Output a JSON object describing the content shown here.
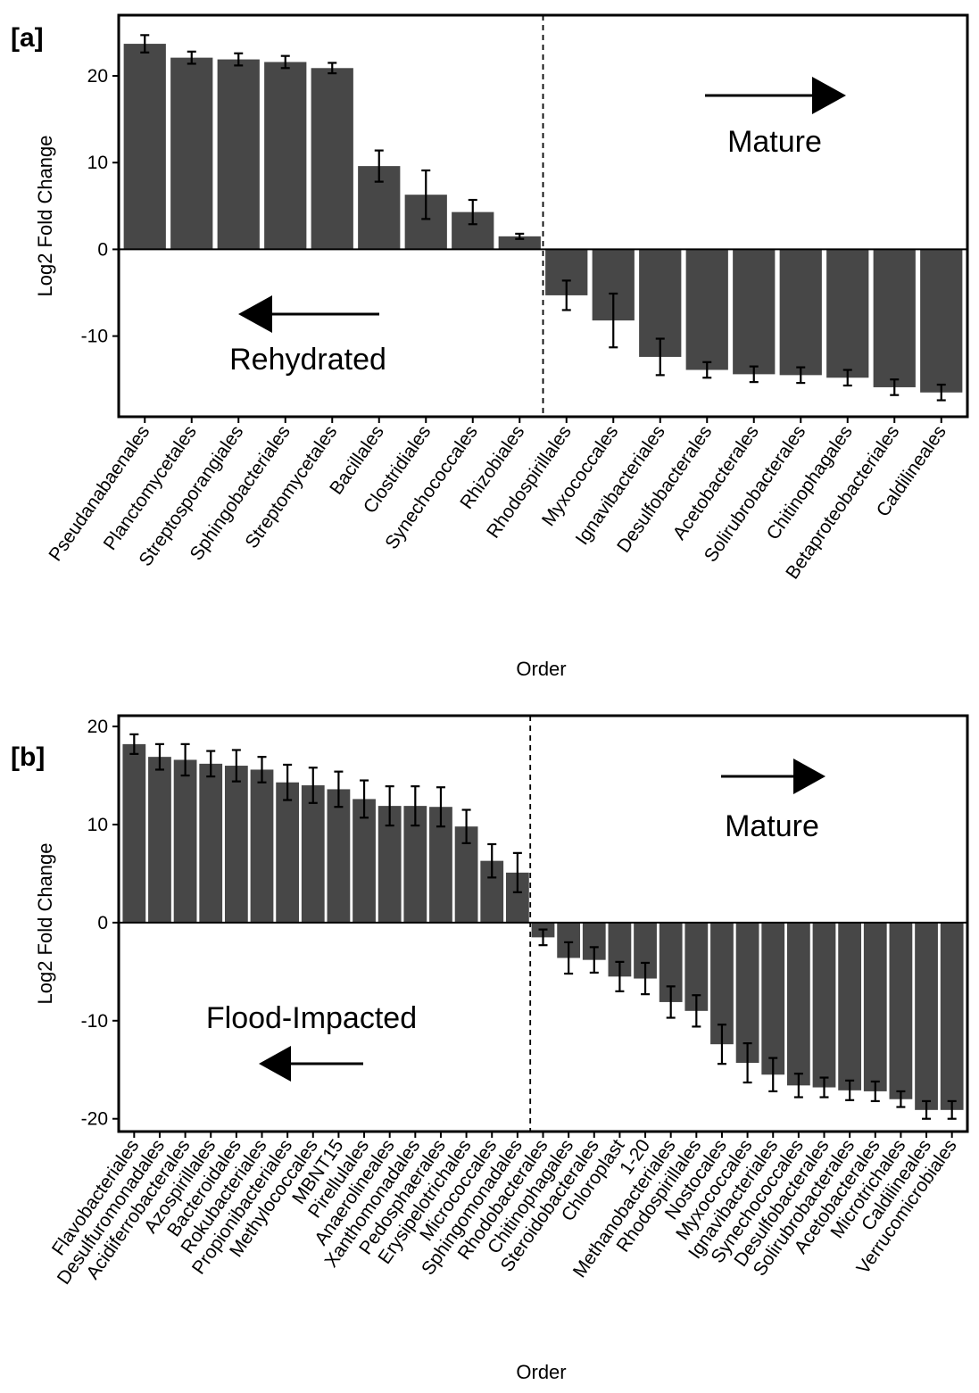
{
  "chart_data": [
    {
      "type": "bar",
      "panel_label": "[a]",
      "xlabel": "Order",
      "ylabel": "Log2 Fold Change",
      "ylim": [
        -19.3,
        27
      ],
      "yticks": [
        -10,
        0,
        10,
        20
      ],
      "ytick_labels": [
        "-10",
        "0",
        "10",
        "20"
      ],
      "categories": [
        "Pseudanabaenales",
        "Planctomycetales",
        "Streptosporangiales",
        "Sphingobacteriales",
        "Streptomycetales",
        "Bacillales",
        "Clostridiales",
        "Synechococcales",
        "Rhizobiales",
        "Rhodospirillales",
        "Myxococcales",
        "Ignavibacteriales",
        "Desulfobacterales",
        "Acetobacterales",
        "Solirubrobacterales",
        "Chitinophagales",
        "Betaproteobacteriales",
        "Caldilineales"
      ],
      "values": [
        23.7,
        22.1,
        21.9,
        21.6,
        20.9,
        9.6,
        6.3,
        4.3,
        1.5,
        -5.3,
        -8.2,
        -12.4,
        -13.9,
        -14.4,
        -14.5,
        -14.8,
        -15.9,
        -16.5
      ],
      "errors": [
        1.0,
        0.7,
        0.7,
        0.7,
        0.6,
        1.8,
        2.8,
        1.4,
        0.3,
        1.7,
        3.1,
        2.1,
        0.9,
        0.9,
        0.9,
        0.9,
        0.9,
        0.9
      ],
      "annotations": {
        "positive_label": "Rehydrated",
        "negative_label": "Mature"
      },
      "bar_color": "#474747"
    },
    {
      "type": "bar",
      "panel_label": "[b]",
      "xlabel": "Order",
      "ylabel": "Log2 Fold Change",
      "ylim": [
        -21.3,
        21.1
      ],
      "yticks": [
        -20,
        -10,
        0,
        10,
        20
      ],
      "ytick_labels": [
        "-20",
        "-10",
        "0",
        "10",
        "20"
      ],
      "categories": [
        "Flavobacteriales",
        "Desulfuromonadales",
        "Acidiferrobacterales",
        "Azospirillales",
        "Bacteroidales",
        "Rokubacteriales",
        "Propionibacteriales",
        "Methylococcales",
        "MBNT15",
        "Pirellulales",
        "Anaerolineales",
        "Xanthomonadales",
        "Pedosphaerales",
        "Erysipelotrichales",
        "Micrococcales",
        "Sphingomonadales",
        "Rhodobacterales",
        "Chitinophagales",
        "Steroidobacterales",
        "Chloroplast",
        "1-20",
        "Methanobacteriales",
        "Rhodospirillales",
        "Nostocales",
        "Myxococcales",
        "Ignavibacteriales",
        "Synechococcales",
        "Desulfobacterales",
        "Solirubrobacterales",
        "Acetobacterales",
        "Microtrichales",
        "Caldilineales",
        "Verrucomicrobiales"
      ],
      "values": [
        18.2,
        16.9,
        16.6,
        16.2,
        16.0,
        15.6,
        14.3,
        14.0,
        13.6,
        12.6,
        11.9,
        11.9,
        11.8,
        9.8,
        6.3,
        5.1,
        -1.5,
        -3.6,
        -3.8,
        -5.5,
        -5.7,
        -8.1,
        -9.0,
        -12.4,
        -14.3,
        -15.5,
        -16.6,
        -16.8,
        -17.1,
        -17.2,
        -18.0,
        -19.1,
        -19.1
      ],
      "errors": [
        1.0,
        1.3,
        1.6,
        1.3,
        1.6,
        1.3,
        1.8,
        1.8,
        1.8,
        1.9,
        2.0,
        2.0,
        2.0,
        1.7,
        1.7,
        2.0,
        0.8,
        1.6,
        1.3,
        1.5,
        1.6,
        1.6,
        1.6,
        2.0,
        2.0,
        1.7,
        1.2,
        1.0,
        1.0,
        1.0,
        0.8,
        0.9,
        0.9
      ],
      "annotations": {
        "positive_label": "Flood-Impacted",
        "negative_label": "Mature"
      },
      "bar_color": "#474747"
    }
  ]
}
